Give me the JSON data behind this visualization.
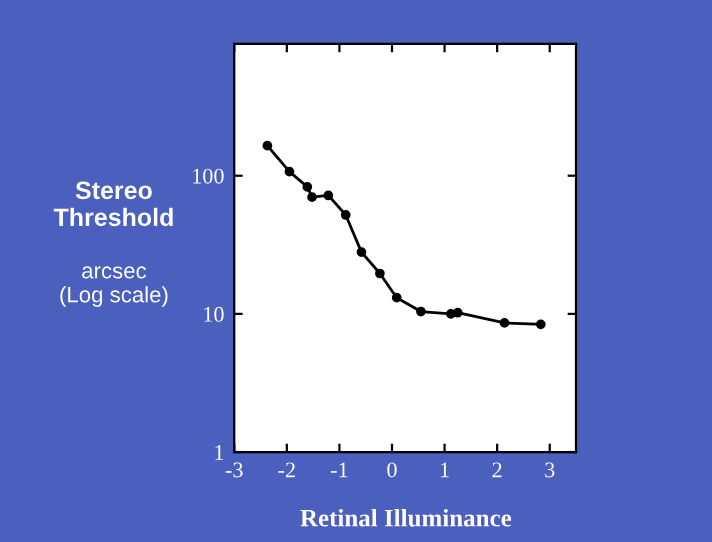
{
  "chart_data": {
    "type": "line",
    "xlabel": "Retinal Illuminance",
    "ylabel": "Stereo\nThreshold",
    "annotations": [
      "arcsec\n(Log scale)"
    ],
    "x": [
      -2.37,
      -1.95,
      -1.61,
      -1.52,
      -1.21,
      -0.88,
      -0.58,
      -0.23,
      0.09,
      0.55,
      1.12,
      1.25,
      2.14,
      2.83
    ],
    "series": [
      {
        "color": "#000000",
        "values": [
          165,
          107,
          83,
          70,
          72,
          52,
          28,
          19.6,
          13.1,
          10.4,
          10.0,
          10.2,
          8.6,
          8.4
        ]
      }
    ],
    "log": true,
    "xlim": [
      -3,
      3.5
    ],
    "ylim": [
      1,
      900
    ],
    "xticks": [
      {
        "value": -3,
        "label": "-3"
      },
      {
        "value": -2,
        "label": "-2"
      },
      {
        "value": -1,
        "label": "-1"
      },
      0,
      1,
      2,
      3
    ],
    "yticks": [
      1,
      10,
      100
    ],
    "grid": false,
    "legend": false,
    "marker": "circle",
    "line_style": "solid"
  }
}
